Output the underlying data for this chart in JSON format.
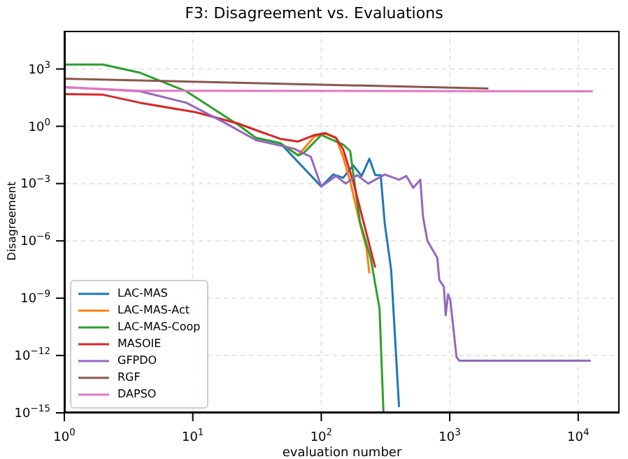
{
  "chart_data": {
    "type": "line",
    "title": "F3: Disagreement vs. Evaluations",
    "xlabel": "evaluation number",
    "ylabel": "Disagreement",
    "log": "xy",
    "grid": true,
    "legend": "bottom left",
    "marker": "none",
    "line_style": "solid",
    "xlim": [
      1,
      21000
    ],
    "ylim": [
      1e-15,
      100000.0
    ],
    "xticks": [
      {
        "value": 1,
        "label": "10$^{0}$"
      },
      {
        "value": 10,
        "label": "10$^{1}$"
      },
      {
        "value": 100,
        "label": "10$^{2}$"
      },
      {
        "value": 1000,
        "label": "10$^{3}$"
      },
      {
        "value": 10000,
        "label": "10$^{4}$"
      }
    ],
    "yticks": [
      {
        "value": 1e-15,
        "label": "10$^{−15}$"
      },
      {
        "value": 1e-12,
        "label": "10$^{−12}$"
      },
      {
        "value": 1e-09,
        "label": "10$^{−9}$"
      },
      {
        "value": 1e-06,
        "label": "10$^{−6}$"
      },
      {
        "value": 0.001,
        "label": "10$^{−3}$"
      },
      {
        "value": 1,
        "label": "10$^{0}$"
      },
      {
        "value": 1000,
        "label": "10$^{3}$"
      }
    ],
    "series": [
      {
        "name": "LAC-MAS",
        "color": "#1f77b4",
        "x": [
          31,
          48,
          100,
          124,
          148,
          177,
          206,
          237,
          263,
          290,
          312,
          350,
          403
        ],
        "values": [
          0.25,
          0.13,
          0.0007,
          0.003,
          0.002,
          0.009,
          0.0025,
          0.02,
          0.0028,
          0.0028,
          8e-06,
          3e-08,
          2e-15
        ]
      },
      {
        "name": "LAC-MAS-Act",
        "color": "#ff7f0e",
        "x": [
          48,
          66,
          89,
          109,
          130,
          148,
          168,
          200,
          225,
          237
        ],
        "values": [
          0.13,
          0.03,
          0.3,
          0.4,
          0.25,
          0.025,
          0.0013,
          8e-06,
          4e-07,
          2e-08
        ]
      },
      {
        "name": "LAC-MAS-Coop",
        "color": "#2ca02c",
        "x": [
          1,
          2,
          3.9,
          8.9,
          22.5,
          31,
          48,
          66,
          73,
          100,
          121,
          148,
          168,
          181,
          200,
          242,
          284,
          305
        ],
        "values": [
          1700,
          1700,
          630,
          68,
          1.2,
          0.25,
          0.13,
          0.03,
          0.04,
          0.35,
          0.2,
          0.11,
          0.05,
          0.0013,
          1e-05,
          1.3e-07,
          3e-10,
          1e-15
        ]
      },
      {
        "name": "MASOIE",
        "color": "#d62728",
        "x": [
          1,
          2,
          3.9,
          10.6,
          22.5,
          31,
          48,
          66,
          89,
          107,
          130,
          148,
          177,
          215,
          263
        ],
        "values": [
          48,
          45,
          17,
          5.4,
          1.4,
          0.63,
          0.22,
          0.16,
          0.35,
          0.44,
          0.25,
          0.063,
          0.0013,
          8e-06,
          4e-08
        ]
      },
      {
        "name": "GFPDO",
        "color": "#9467bd",
        "x": [
          1,
          3.9,
          8.9,
          17.5,
          31,
          61,
          83,
          100,
          130,
          155,
          190,
          232,
          312,
          403,
          460,
          520,
          590,
          620,
          670,
          800,
          830,
          900,
          930,
          970,
          1010,
          1130,
          1190,
          12500
        ],
        "values": [
          112,
          68,
          17,
          1.6,
          0.19,
          0.068,
          0.025,
          0.0007,
          0.0025,
          0.001,
          0.0028,
          0.001,
          0.003,
          0.0016,
          0.0025,
          0.0006,
          0.0016,
          1.8e-05,
          1e-06,
          1.3e-07,
          9e-09,
          4e-09,
          1.3e-10,
          1.6e-09,
          8e-10,
          8e-13,
          5.4e-13,
          5.4e-13
        ]
      },
      {
        "name": "RGF",
        "color": "#8c564b",
        "x": [
          1,
          2000
        ],
        "values": [
          310,
          95
        ]
      },
      {
        "name": "DAPSO",
        "color": "#e377c2",
        "x": [
          1,
          4,
          13000
        ],
        "values": [
          110,
          72,
          68
        ]
      }
    ]
  }
}
